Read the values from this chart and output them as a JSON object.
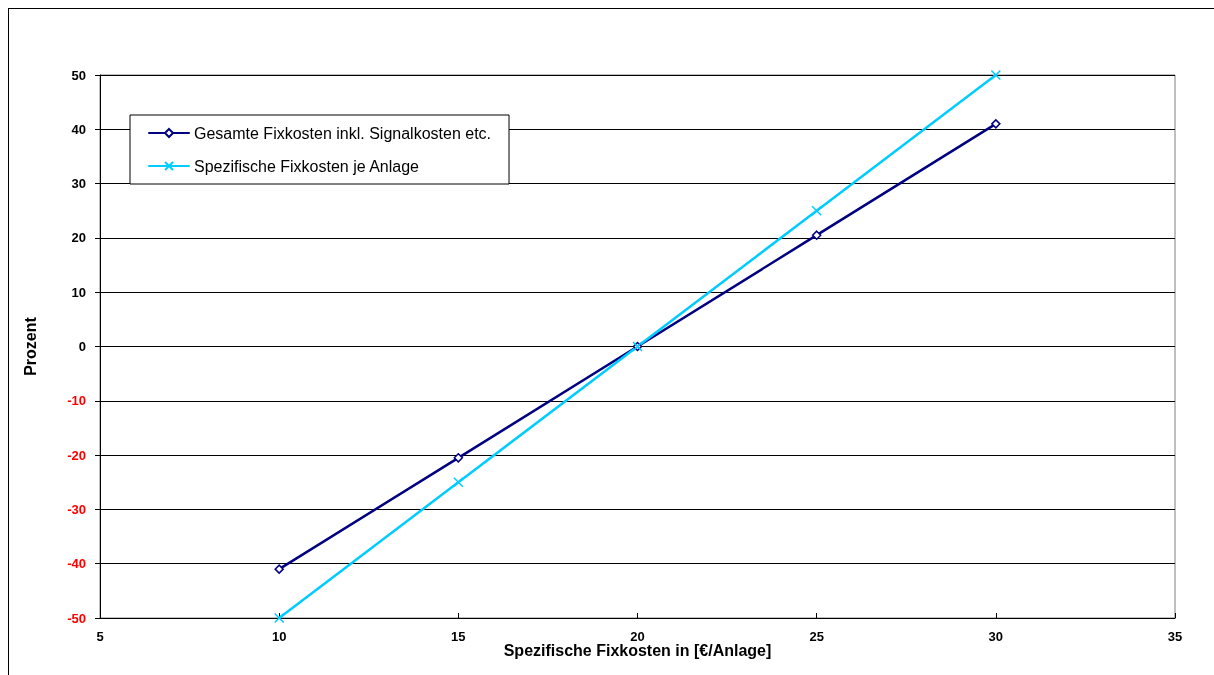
{
  "chart_data": {
    "type": "line",
    "xlabel": "Spezifische Fixkosten in [€/Anlage]",
    "ylabel": "Prozent",
    "x": [
      10,
      15,
      20,
      25,
      30
    ],
    "series": [
      {
        "name": "Gesamte Fixkosten inkl. Signalkosten etc.",
        "color": "#000080",
        "marker": "diamond",
        "values": [
          -41,
          -20.5,
          0,
          20.5,
          41
        ]
      },
      {
        "name": "Spezifische Fixkosten je Anlage",
        "color": "#00ccff",
        "marker": "cross",
        "values": [
          -50,
          -25,
          0,
          25,
          50
        ]
      }
    ],
    "xlim": [
      5,
      35
    ],
    "xticks": [
      5,
      10,
      15,
      20,
      25,
      30,
      35
    ],
    "ylim": [
      -50,
      50
    ],
    "yticks": [
      -50,
      -40,
      -30,
      -20,
      -10,
      0,
      10,
      20,
      30,
      40,
      50
    ],
    "grid": "y",
    "legend": "top left",
    "line_style": "solid"
  }
}
